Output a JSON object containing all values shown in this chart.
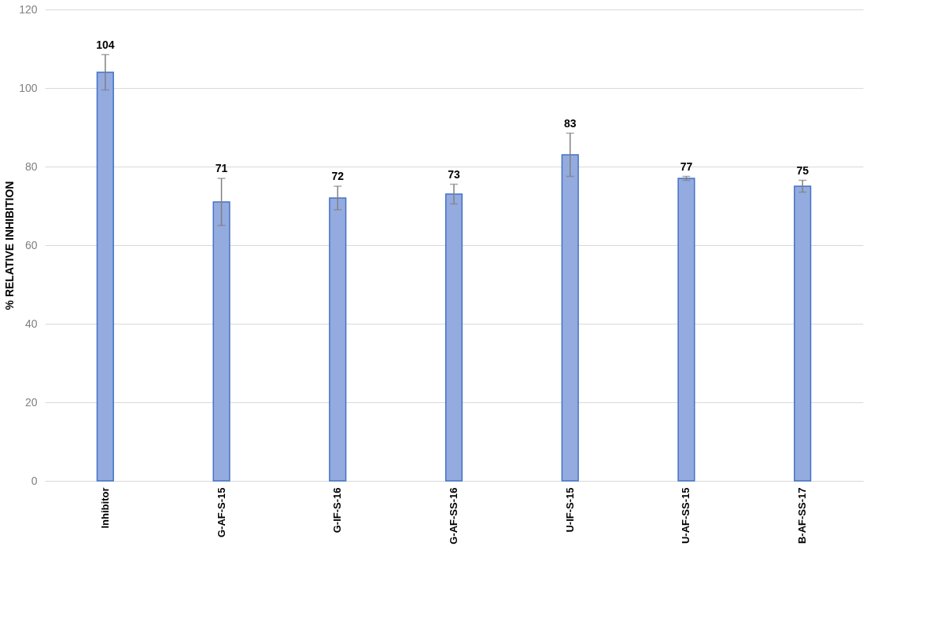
{
  "chart_data": {
    "type": "bar",
    "ylabel": "% RELATIVE INHIBITION",
    "categories": [
      "Inhibitor",
      "G-AF-S-15",
      "G-IF-S-16",
      "G-AF-SS-16",
      "U-IF-S-15",
      "U-AF-SS-15",
      "B-AF-SS-17"
    ],
    "values": [
      104,
      71,
      72,
      73,
      83,
      77,
      75
    ],
    "errors": [
      4.5,
      6,
      3,
      2.5,
      5.5,
      0.5,
      1.5
    ],
    "color": "#94abe0",
    "ylim": [
      0,
      120
    ],
    "yticks": [
      0,
      20,
      40,
      60,
      80,
      100,
      120
    ],
    "grid": "y",
    "data_labels": true
  }
}
